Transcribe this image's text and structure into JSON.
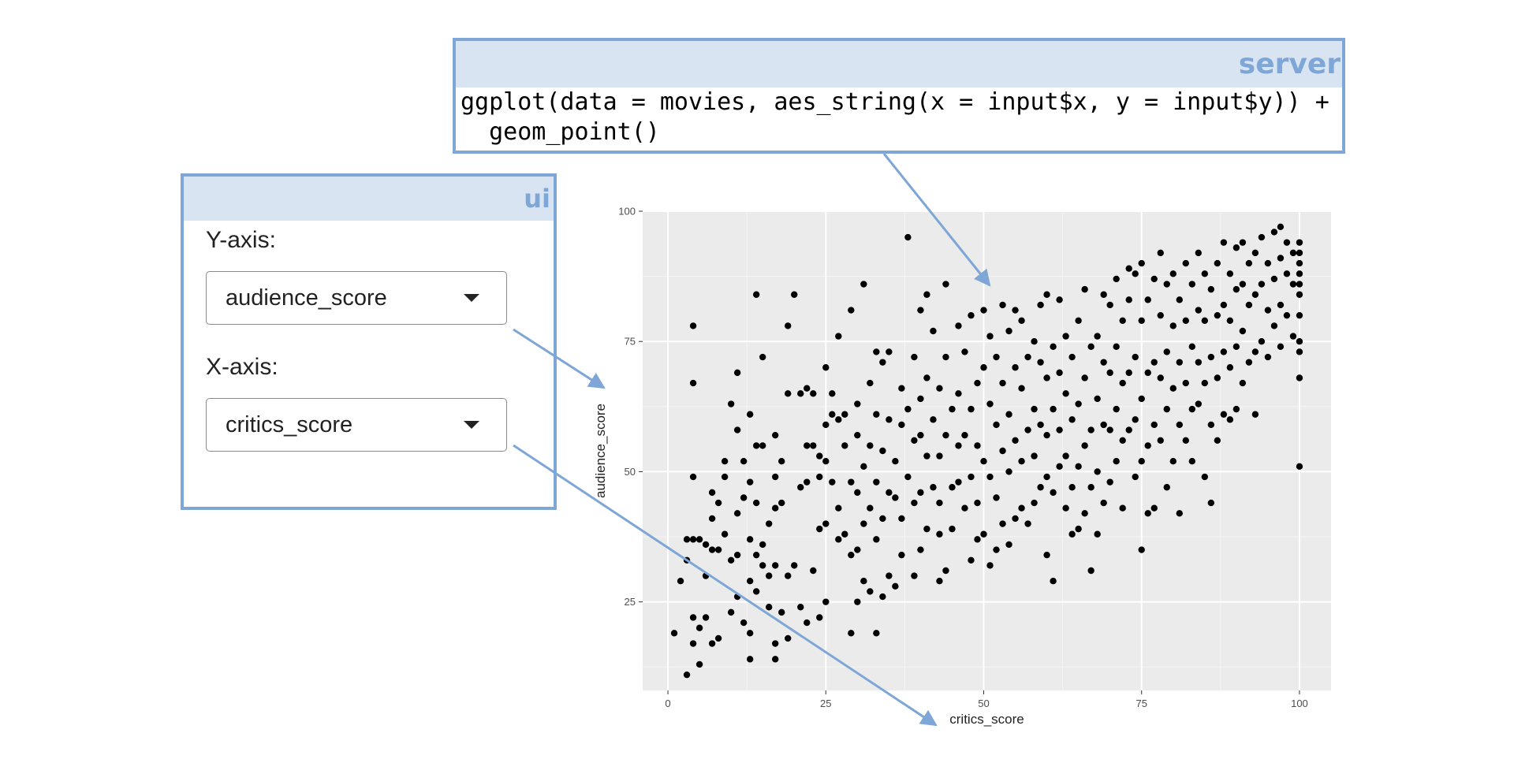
{
  "server": {
    "title": "server",
    "code_lines": [
      "ggplot(data = movies, aes_string(x = input$x, y = input$y)) +",
      "  geom_point()"
    ]
  },
  "ui": {
    "title": "ui",
    "y_label": "Y-axis:",
    "y_value": "audience_score",
    "x_label": "X-axis:",
    "x_value": "critics_score"
  },
  "colors": {
    "panel_border": "#7ea6d6",
    "panel_header": "#d9e4f3",
    "plot_background": "#ebebeb",
    "point": "#000000"
  },
  "chart_data": {
    "type": "scatter",
    "xlabel": "critics_score",
    "ylabel": "audience_score",
    "xlim": [
      -4,
      105
    ],
    "ylim": [
      8,
      100
    ],
    "x_ticks": [
      0,
      25,
      50,
      75,
      100
    ],
    "y_ticks": [
      25,
      50,
      75,
      100
    ],
    "grid": true,
    "points": [
      [
        1,
        19
      ],
      [
        3,
        11
      ],
      [
        2,
        29
      ],
      [
        3,
        33
      ],
      [
        3,
        37
      ],
      [
        4,
        37
      ],
      [
        4,
        22
      ],
      [
        4,
        17
      ],
      [
        4,
        49
      ],
      [
        4,
        67
      ],
      [
        4,
        78
      ],
      [
        5,
        13
      ],
      [
        5,
        20
      ],
      [
        5,
        37
      ],
      [
        6,
        22
      ],
      [
        6,
        30
      ],
      [
        6,
        36
      ],
      [
        7,
        17
      ],
      [
        7,
        35
      ],
      [
        7,
        41
      ],
      [
        7,
        46
      ],
      [
        8,
        18
      ],
      [
        8,
        35
      ],
      [
        8,
        44
      ],
      [
        9,
        38
      ],
      [
        9,
        49
      ],
      [
        9,
        52
      ],
      [
        10,
        23
      ],
      [
        10,
        33
      ],
      [
        10,
        63
      ],
      [
        11,
        26
      ],
      [
        11,
        34
      ],
      [
        11,
        42
      ],
      [
        11,
        58
      ],
      [
        11,
        69
      ],
      [
        12,
        21
      ],
      [
        12,
        45
      ],
      [
        12,
        52
      ],
      [
        13,
        14
      ],
      [
        13,
        19
      ],
      [
        13,
        29
      ],
      [
        13,
        37
      ],
      [
        13,
        48
      ],
      [
        13,
        61
      ],
      [
        14,
        27
      ],
      [
        14,
        34
      ],
      [
        14,
        44
      ],
      [
        14,
        55
      ],
      [
        14,
        84
      ],
      [
        15,
        32
      ],
      [
        15,
        36
      ],
      [
        15,
        55
      ],
      [
        15,
        72
      ],
      [
        16,
        24
      ],
      [
        16,
        30
      ],
      [
        16,
        40
      ],
      [
        17,
        14
      ],
      [
        17,
        17
      ],
      [
        17,
        32
      ],
      [
        17,
        43
      ],
      [
        17,
        49
      ],
      [
        17,
        57
      ],
      [
        18,
        23
      ],
      [
        18,
        44
      ],
      [
        18,
        52
      ],
      [
        19,
        18
      ],
      [
        19,
        30
      ],
      [
        19,
        65
      ],
      [
        19,
        78
      ],
      [
        20,
        32
      ],
      [
        20,
        84
      ],
      [
        21,
        24
      ],
      [
        21,
        47
      ],
      [
        21,
        65
      ],
      [
        22,
        21
      ],
      [
        22,
        48
      ],
      [
        22,
        55
      ],
      [
        22,
        66
      ],
      [
        23,
        31
      ],
      [
        23,
        55
      ],
      [
        23,
        65
      ],
      [
        24,
        22
      ],
      [
        24,
        39
      ],
      [
        24,
        49
      ],
      [
        24,
        53
      ],
      [
        25,
        25
      ],
      [
        25,
        40
      ],
      [
        25,
        52
      ],
      [
        25,
        59
      ],
      [
        25,
        70
      ],
      [
        26,
        48
      ],
      [
        26,
        61
      ],
      [
        26,
        65
      ],
      [
        27,
        37
      ],
      [
        27,
        43
      ],
      [
        27,
        60
      ],
      [
        27,
        76
      ],
      [
        28,
        38
      ],
      [
        28,
        55
      ],
      [
        28,
        61
      ],
      [
        29,
        19
      ],
      [
        29,
        34
      ],
      [
        29,
        48
      ],
      [
        29,
        81
      ],
      [
        30,
        25
      ],
      [
        30,
        35
      ],
      [
        30,
        46
      ],
      [
        30,
        57
      ],
      [
        30,
        63
      ],
      [
        31,
        29
      ],
      [
        31,
        40
      ],
      [
        31,
        51
      ],
      [
        31,
        86
      ],
      [
        32,
        27
      ],
      [
        32,
        43
      ],
      [
        32,
        55
      ],
      [
        32,
        67
      ],
      [
        33,
        19
      ],
      [
        33,
        37
      ],
      [
        33,
        48
      ],
      [
        33,
        61
      ],
      [
        33,
        73
      ],
      [
        34,
        26
      ],
      [
        34,
        41
      ],
      [
        34,
        54
      ],
      [
        34,
        71
      ],
      [
        35,
        30
      ],
      [
        35,
        46
      ],
      [
        35,
        60
      ],
      [
        35,
        73
      ],
      [
        36,
        28
      ],
      [
        36,
        45
      ],
      [
        36,
        52
      ],
      [
        37,
        34
      ],
      [
        37,
        41
      ],
      [
        37,
        59
      ],
      [
        37,
        66
      ],
      [
        38,
        49
      ],
      [
        38,
        62
      ],
      [
        38,
        95
      ],
      [
        39,
        30
      ],
      [
        39,
        44
      ],
      [
        39,
        56
      ],
      [
        39,
        72
      ],
      [
        40,
        35
      ],
      [
        40,
        46
      ],
      [
        40,
        57
      ],
      [
        40,
        64
      ],
      [
        40,
        81
      ],
      [
        41,
        39
      ],
      [
        41,
        53
      ],
      [
        41,
        68
      ],
      [
        41,
        84
      ],
      [
        42,
        47
      ],
      [
        42,
        60
      ],
      [
        42,
        77
      ],
      [
        43,
        29
      ],
      [
        43,
        38
      ],
      [
        43,
        44
      ],
      [
        43,
        53
      ],
      [
        43,
        66
      ],
      [
        44,
        31
      ],
      [
        44,
        57
      ],
      [
        44,
        72
      ],
      [
        44,
        86
      ],
      [
        45,
        39
      ],
      [
        45,
        47
      ],
      [
        45,
        62
      ],
      [
        46,
        48
      ],
      [
        46,
        55
      ],
      [
        46,
        65
      ],
      [
        46,
        78
      ],
      [
        47,
        43
      ],
      [
        47,
        57
      ],
      [
        47,
        73
      ],
      [
        48,
        33
      ],
      [
        48,
        49
      ],
      [
        48,
        62
      ],
      [
        48,
        80
      ],
      [
        49,
        37
      ],
      [
        49,
        44
      ],
      [
        49,
        55
      ],
      [
        49,
        67
      ],
      [
        50,
        38
      ],
      [
        50,
        52
      ],
      [
        50,
        70
      ],
      [
        50,
        81
      ],
      [
        51,
        32
      ],
      [
        51,
        49
      ],
      [
        51,
        63
      ],
      [
        51,
        76
      ],
      [
        52,
        35
      ],
      [
        52,
        45
      ],
      [
        52,
        59
      ],
      [
        52,
        72
      ],
      [
        53,
        40
      ],
      [
        53,
        54
      ],
      [
        53,
        67
      ],
      [
        53,
        82
      ],
      [
        54,
        36
      ],
      [
        54,
        50
      ],
      [
        54,
        61
      ],
      [
        54,
        77
      ],
      [
        55,
        41
      ],
      [
        55,
        56
      ],
      [
        55,
        70
      ],
      [
        55,
        81
      ],
      [
        56,
        43
      ],
      [
        56,
        52
      ],
      [
        56,
        66
      ],
      [
        56,
        79
      ],
      [
        57,
        40
      ],
      [
        57,
        58
      ],
      [
        57,
        72
      ],
      [
        58,
        44
      ],
      [
        58,
        53
      ],
      [
        58,
        62
      ],
      [
        58,
        75
      ],
      [
        59,
        47
      ],
      [
        59,
        59
      ],
      [
        59,
        71
      ],
      [
        59,
        82
      ],
      [
        60,
        34
      ],
      [
        60,
        49
      ],
      [
        60,
        57
      ],
      [
        60,
        68
      ],
      [
        60,
        84
      ],
      [
        61,
        29
      ],
      [
        61,
        46
      ],
      [
        61,
        62
      ],
      [
        61,
        74
      ],
      [
        62,
        51
      ],
      [
        62,
        58
      ],
      [
        62,
        69
      ],
      [
        62,
        83
      ],
      [
        63,
        43
      ],
      [
        63,
        53
      ],
      [
        63,
        65
      ],
      [
        63,
        76
      ],
      [
        64,
        38
      ],
      [
        64,
        47
      ],
      [
        64,
        60
      ],
      [
        64,
        72
      ],
      [
        65,
        39
      ],
      [
        65,
        51
      ],
      [
        65,
        63
      ],
      [
        65,
        79
      ],
      [
        66,
        42
      ],
      [
        66,
        55
      ],
      [
        66,
        68
      ],
      [
        66,
        85
      ],
      [
        67,
        31
      ],
      [
        67,
        47
      ],
      [
        67,
        58
      ],
      [
        67,
        74
      ],
      [
        68,
        38
      ],
      [
        68,
        50
      ],
      [
        68,
        64
      ],
      [
        68,
        76
      ],
      [
        69,
        44
      ],
      [
        69,
        59
      ],
      [
        69,
        71
      ],
      [
        69,
        84
      ],
      [
        70,
        48
      ],
      [
        70,
        58
      ],
      [
        70,
        69
      ],
      [
        70,
        82
      ],
      [
        71,
        52
      ],
      [
        71,
        62
      ],
      [
        71,
        74
      ],
      [
        71,
        87
      ],
      [
        72,
        43
      ],
      [
        72,
        56
      ],
      [
        72,
        67
      ],
      [
        72,
        79
      ],
      [
        73,
        58
      ],
      [
        73,
        69
      ],
      [
        73,
        83
      ],
      [
        73,
        89
      ],
      [
        74,
        49
      ],
      [
        74,
        60
      ],
      [
        74,
        72
      ],
      [
        74,
        88
      ],
      [
        75,
        35
      ],
      [
        75,
        52
      ],
      [
        75,
        64
      ],
      [
        75,
        79
      ],
      [
        75,
        90
      ],
      [
        76,
        42
      ],
      [
        76,
        55
      ],
      [
        76,
        69
      ],
      [
        76,
        83
      ],
      [
        77,
        43
      ],
      [
        77,
        59
      ],
      [
        77,
        71
      ],
      [
        77,
        87
      ],
      [
        78,
        56
      ],
      [
        78,
        68
      ],
      [
        78,
        80
      ],
      [
        78,
        92
      ],
      [
        79,
        47
      ],
      [
        79,
        62
      ],
      [
        79,
        73
      ],
      [
        79,
        86
      ],
      [
        80,
        52
      ],
      [
        80,
        66
      ],
      [
        80,
        78
      ],
      [
        80,
        88
      ],
      [
        81,
        42
      ],
      [
        81,
        59
      ],
      [
        81,
        71
      ],
      [
        81,
        83
      ],
      [
        82,
        56
      ],
      [
        82,
        67
      ],
      [
        82,
        79
      ],
      [
        82,
        90
      ],
      [
        83,
        52
      ],
      [
        83,
        62
      ],
      [
        83,
        74
      ],
      [
        83,
        86
      ],
      [
        84,
        63
      ],
      [
        84,
        71
      ],
      [
        84,
        81
      ],
      [
        84,
        92
      ],
      [
        85,
        49
      ],
      [
        85,
        67
      ],
      [
        85,
        79
      ],
      [
        85,
        88
      ],
      [
        86,
        44
      ],
      [
        86,
        59
      ],
      [
        86,
        72
      ],
      [
        86,
        85
      ],
      [
        87,
        56
      ],
      [
        87,
        68
      ],
      [
        87,
        80
      ],
      [
        87,
        90
      ],
      [
        88,
        61
      ],
      [
        88,
        73
      ],
      [
        88,
        82
      ],
      [
        88,
        94
      ],
      [
        89,
        60
      ],
      [
        89,
        70
      ],
      [
        89,
        79
      ],
      [
        89,
        88
      ],
      [
        90,
        62
      ],
      [
        90,
        74
      ],
      [
        90,
        85
      ],
      [
        90,
        93
      ],
      [
        91,
        67
      ],
      [
        91,
        77
      ],
      [
        91,
        86
      ],
      [
        91,
        94
      ],
      [
        92,
        71
      ],
      [
        92,
        82
      ],
      [
        92,
        90
      ],
      [
        93,
        61
      ],
      [
        93,
        73
      ],
      [
        93,
        84
      ],
      [
        93,
        92
      ],
      [
        94,
        75
      ],
      [
        94,
        86
      ],
      [
        94,
        95
      ],
      [
        95,
        72
      ],
      [
        95,
        81
      ],
      [
        95,
        90
      ],
      [
        96,
        78
      ],
      [
        96,
        87
      ],
      [
        96,
        96
      ],
      [
        97,
        74
      ],
      [
        97,
        82
      ],
      [
        97,
        91
      ],
      [
        97,
        97
      ],
      [
        98,
        80
      ],
      [
        98,
        88
      ],
      [
        98,
        94
      ],
      [
        99,
        76
      ],
      [
        99,
        86
      ],
      [
        99,
        92
      ],
      [
        100,
        51
      ],
      [
        100,
        68
      ],
      [
        100,
        73
      ],
      [
        100,
        75
      ],
      [
        100,
        80
      ],
      [
        100,
        84
      ],
      [
        100,
        86
      ],
      [
        100,
        88
      ],
      [
        100,
        90
      ],
      [
        100,
        92
      ],
      [
        100,
        94
      ]
    ]
  }
}
